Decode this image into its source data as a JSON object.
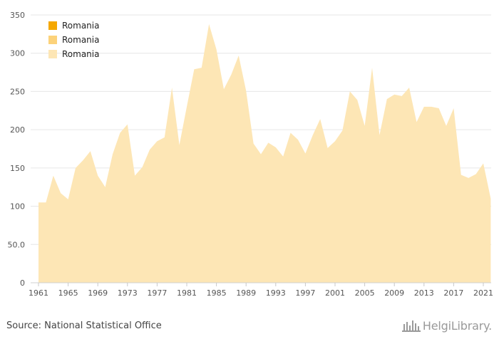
{
  "source_text": "Source: National Statistical Office",
  "brand": {
    "name": "HelgiLibrary."
  },
  "colors": {
    "legend": [
      "#f5a800",
      "#fcd27a",
      "#fde6b5"
    ],
    "area": "#fde6b5",
    "grid": "#e6e6e6"
  },
  "chart_data": {
    "type": "area",
    "title": "",
    "xlabel": "",
    "ylabel": "",
    "ylim": [
      0,
      350
    ],
    "y_ticks": [
      "0",
      "50.0",
      "100",
      "150",
      "200",
      "250",
      "300",
      "350"
    ],
    "x_ticks": [
      "1961",
      "1965",
      "1969",
      "1973",
      "1977",
      "1981",
      "1985",
      "1989",
      "1993",
      "1997",
      "2001",
      "2005",
      "2009",
      "2013",
      "2017",
      "2021"
    ],
    "grid": true,
    "legend_placement": "top-left",
    "legend": [
      "Romania",
      "Romania",
      "Romania"
    ],
    "x": [
      1961,
      1962,
      1963,
      1964,
      1965,
      1966,
      1967,
      1968,
      1969,
      1970,
      1971,
      1972,
      1973,
      1974,
      1975,
      1976,
      1977,
      1978,
      1979,
      1980,
      1981,
      1982,
      1983,
      1984,
      1985,
      1986,
      1987,
      1988,
      1989,
      1990,
      1991,
      1992,
      1993,
      1994,
      1995,
      1996,
      1997,
      1998,
      1999,
      2000,
      2001,
      2002,
      2003,
      2004,
      2005,
      2006,
      2007,
      2008,
      2009,
      2010,
      2011,
      2012,
      2013,
      2014,
      2015,
      2016,
      2017,
      2018,
      2019,
      2020,
      2021,
      2022
    ],
    "series": [
      {
        "values": [
          105,
          105,
          140,
          117,
          109,
          150,
          160,
          172,
          140,
          125,
          168,
          196,
          207,
          140,
          151,
          174,
          185,
          190,
          255,
          180,
          230,
          279,
          281,
          338,
          305,
          253,
          272,
          297,
          251,
          182,
          168,
          183,
          177,
          165,
          196,
          187,
          169,
          193,
          214,
          176,
          185,
          199,
          250,
          239,
          205,
          281,
          193,
          240,
          246,
          244,
          255,
          210,
          230,
          230,
          228,
          205,
          228,
          141,
          137,
          142,
          156,
          110
        ]
      }
    ]
  }
}
